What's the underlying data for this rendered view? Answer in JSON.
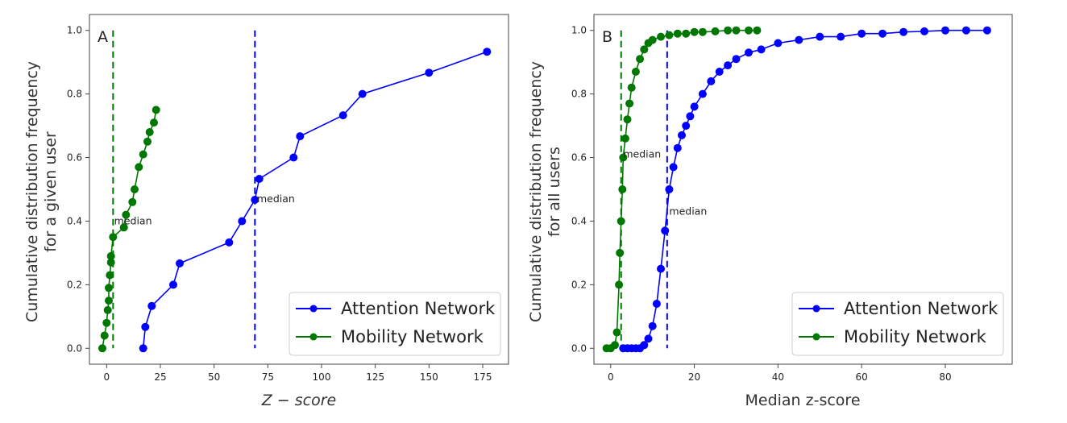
{
  "chart_data": [
    {
      "type": "line",
      "panel_label": "A",
      "xlabel": "Z − score",
      "ylabel": [
        "Cumulative distribution frequency",
        "for a given user"
      ],
      "xlim": [
        -8,
        187
      ],
      "ylim": [
        -0.05,
        1.05
      ],
      "xticks": [
        0,
        25,
        50,
        75,
        100,
        125,
        150,
        175
      ],
      "yticks": [
        0.0,
        0.2,
        0.4,
        0.6,
        0.8,
        1.0
      ],
      "ytick_labels": [
        "0.0",
        "0.2",
        "0.4",
        "0.6",
        "0.8",
        "1.0"
      ],
      "legend": {
        "position": "lower right",
        "entries": [
          "Attention Network",
          "Mobility Network"
        ]
      },
      "series": [
        {
          "name": "Attention Network",
          "color": "#0000ff",
          "x": [
            17,
            18,
            21,
            31,
            34,
            57,
            63,
            69,
            71,
            87,
            90,
            110,
            119,
            150,
            177
          ],
          "y": [
            0.0,
            0.067,
            0.133,
            0.2,
            0.267,
            0.333,
            0.4,
            0.467,
            0.533,
            0.6,
            0.667,
            0.733,
            0.8,
            0.867,
            0.933
          ],
          "median": 69
        },
        {
          "name": "Mobility Network",
          "color": "#007700",
          "x": [
            -2,
            -1,
            0,
            0.5,
            1,
            1,
            1.5,
            2,
            2,
            3,
            8,
            9,
            12,
            13,
            15,
            17,
            19,
            20,
            22,
            23
          ],
          "y": [
            0.0,
            0.04,
            0.08,
            0.12,
            0.15,
            0.19,
            0.23,
            0.27,
            0.29,
            0.35,
            0.38,
            0.42,
            0.46,
            0.5,
            0.57,
            0.61,
            0.65,
            0.68,
            0.71,
            0.75
          ],
          "median": 3
        }
      ],
      "annotations": [
        {
          "text": "median",
          "x": 3.5,
          "y": 0.4
        },
        {
          "text": "median",
          "x": 70,
          "y": 0.47
        }
      ]
    },
    {
      "type": "line",
      "panel_label": "B",
      "xlabel": "Median z-score",
      "ylabel": [
        "Cumulative distribution frequency",
        "for all users"
      ],
      "xlim": [
        -4,
        96
      ],
      "ylim": [
        -0.05,
        1.05
      ],
      "xticks": [
        0,
        20,
        40,
        60,
        80
      ],
      "yticks": [
        0.0,
        0.2,
        0.4,
        0.6,
        0.8,
        1.0
      ],
      "ytick_labels": [
        "0.0",
        "0.2",
        "0.4",
        "0.6",
        "0.8",
        "1.0"
      ],
      "legend": {
        "position": "lower right",
        "entries": [
          "Attention Network",
          "Mobility Network"
        ]
      },
      "series": [
        {
          "name": "Attention Network",
          "color": "#0000ff",
          "x": [
            3,
            4,
            5,
            6,
            7,
            8,
            9,
            10,
            11,
            12,
            13,
            14,
            15,
            16,
            17,
            18,
            19,
            20,
            22,
            24,
            26,
            28,
            30,
            33,
            36,
            40,
            45,
            50,
            55,
            60,
            65,
            70,
            75,
            80,
            85,
            90
          ],
          "y": [
            0.0,
            0.0,
            0.0,
            0.0,
            0.0,
            0.01,
            0.03,
            0.07,
            0.14,
            0.25,
            0.37,
            0.5,
            0.57,
            0.63,
            0.67,
            0.7,
            0.73,
            0.76,
            0.8,
            0.84,
            0.87,
            0.89,
            0.91,
            0.93,
            0.94,
            0.96,
            0.97,
            0.98,
            0.98,
            0.99,
            0.99,
            0.995,
            0.997,
            1.0,
            1.0,
            1.0
          ],
          "median": 13.5
        },
        {
          "name": "Mobility Network",
          "color": "#007700",
          "x": [
            -1,
            0,
            1,
            1.5,
            2,
            2.2,
            2.5,
            2.8,
            3,
            3.5,
            4,
            4.5,
            5,
            6,
            7,
            8,
            9,
            10,
            12,
            14,
            16,
            18,
            20,
            22,
            25,
            28,
            30,
            33,
            35
          ],
          "y": [
            0.0,
            0.0,
            0.01,
            0.05,
            0.2,
            0.3,
            0.4,
            0.5,
            0.6,
            0.66,
            0.72,
            0.77,
            0.82,
            0.87,
            0.91,
            0.94,
            0.96,
            0.97,
            0.98,
            0.985,
            0.99,
            0.99,
            0.995,
            0.995,
            0.997,
            1.0,
            1.0,
            1.0,
            1.0
          ],
          "median": 2.5
        }
      ],
      "annotations": [
        {
          "text": "median",
          "x": 3,
          "y": 0.61
        },
        {
          "text": "median",
          "x": 14,
          "y": 0.43
        }
      ]
    }
  ]
}
